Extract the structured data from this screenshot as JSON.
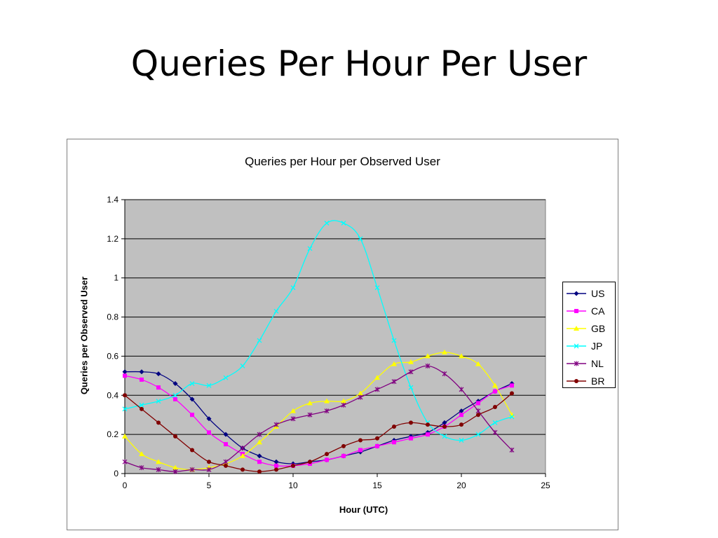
{
  "slide": {
    "title": "Queries Per Hour Per User"
  },
  "chart_data": {
    "type": "line",
    "title": "Queries per Hour per Observed User",
    "xlabel": "Hour (UTC)",
    "ylabel": "Queries per Observed User",
    "xlim": [
      0,
      25
    ],
    "ylim": [
      0,
      1.4
    ],
    "x_ticks": [
      0,
      5,
      10,
      15,
      20,
      25
    ],
    "y_ticks": [
      0,
      0.2,
      0.4,
      0.6,
      0.8,
      1,
      1.2,
      1.4
    ],
    "grid": "horizontal",
    "legend_position": "right",
    "plot_background": "#c0c0c0",
    "x": [
      0,
      1,
      2,
      3,
      4,
      5,
      6,
      7,
      8,
      9,
      10,
      11,
      12,
      13,
      14,
      15,
      16,
      17,
      18,
      19,
      20,
      21,
      22,
      23
    ],
    "series": [
      {
        "name": "US",
        "color": "#000080",
        "marker": "diamond",
        "values": [
          0.52,
          0.52,
          0.51,
          0.46,
          0.38,
          0.28,
          0.2,
          0.13,
          0.09,
          0.06,
          0.05,
          0.06,
          0.07,
          0.09,
          0.11,
          0.14,
          0.17,
          0.19,
          0.21,
          0.26,
          0.32,
          0.37,
          0.42,
          0.46
        ]
      },
      {
        "name": "CA",
        "color": "#ff00ff",
        "marker": "square",
        "values": [
          0.5,
          0.48,
          0.44,
          0.38,
          0.3,
          0.21,
          0.15,
          0.1,
          0.06,
          0.04,
          0.04,
          0.05,
          0.07,
          0.09,
          0.12,
          0.14,
          0.16,
          0.18,
          0.2,
          0.24,
          0.3,
          0.36,
          0.42,
          0.45
        ]
      },
      {
        "name": "GB",
        "color": "#ffff00",
        "marker": "triangle",
        "values": [
          0.19,
          0.1,
          0.06,
          0.03,
          0.02,
          0.03,
          0.05,
          0.09,
          0.16,
          0.24,
          0.32,
          0.36,
          0.37,
          0.37,
          0.41,
          0.49,
          0.56,
          0.57,
          0.6,
          0.62,
          0.6,
          0.56,
          0.45,
          0.3
        ]
      },
      {
        "name": "JP",
        "color": "#00ffff",
        "marker": "x",
        "values": [
          0.33,
          0.35,
          0.37,
          0.4,
          0.46,
          0.45,
          0.49,
          0.55,
          0.68,
          0.83,
          0.95,
          1.15,
          1.28,
          1.28,
          1.2,
          0.95,
          0.68,
          0.44,
          0.26,
          0.19,
          0.17,
          0.2,
          0.26,
          0.29
        ]
      },
      {
        "name": "NL",
        "color": "#800080",
        "marker": "star",
        "values": [
          0.06,
          0.03,
          0.02,
          0.01,
          0.02,
          0.02,
          0.06,
          0.13,
          0.2,
          0.25,
          0.28,
          0.3,
          0.32,
          0.35,
          0.39,
          0.43,
          0.47,
          0.52,
          0.55,
          0.51,
          0.43,
          0.32,
          0.21,
          0.12
        ]
      },
      {
        "name": "BR",
        "color": "#800000",
        "marker": "circle",
        "values": [
          0.4,
          0.33,
          0.26,
          0.19,
          0.12,
          0.06,
          0.04,
          0.02,
          0.01,
          0.02,
          0.04,
          0.06,
          0.1,
          0.14,
          0.17,
          0.18,
          0.24,
          0.26,
          0.25,
          0.24,
          0.25,
          0.3,
          0.34,
          0.41
        ]
      }
    ]
  }
}
